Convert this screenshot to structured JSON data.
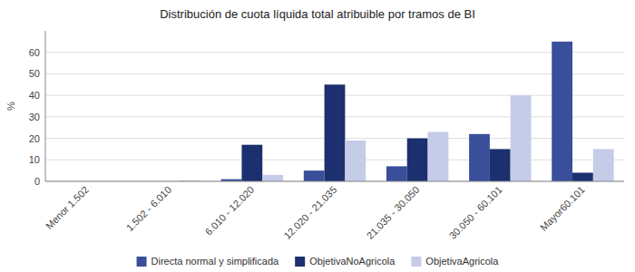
{
  "chart_data": {
    "type": "bar",
    "title": "Distribución de cuota líquida total atribuible por tramos de BI",
    "y_label": "%",
    "categories": [
      "Menor 1.502",
      "1.502 - 6.010",
      "6.010 - 12.020",
      "12.020 - 21.035",
      "21.035 - 30.050",
      "30.050 - 60.101",
      "Mayor60.101"
    ],
    "series": [
      {
        "name": "Directa normal y simplificada",
        "color": "#3a4f9a",
        "values": [
          0.0,
          0.0,
          1.0,
          5.0,
          7.0,
          22.0,
          65.0
        ]
      },
      {
        "name": "ObjetivaNoAgricola",
        "color": "#1c2f6e",
        "values": [
          0.0,
          0.0,
          17.0,
          45.0,
          20.0,
          15.0,
          4.0
        ]
      },
      {
        "name": "ObjetivaAgricola",
        "color": "#c5cce8",
        "values": [
          0.0,
          0.5,
          3.0,
          19.0,
          23.0,
          40.0,
          15.0
        ]
      }
    ],
    "ylim": [
      0,
      70
    ],
    "yticks": [
      0,
      10,
      20,
      30,
      40,
      50,
      60
    ],
    "grid": true,
    "legend": "bottom"
  }
}
